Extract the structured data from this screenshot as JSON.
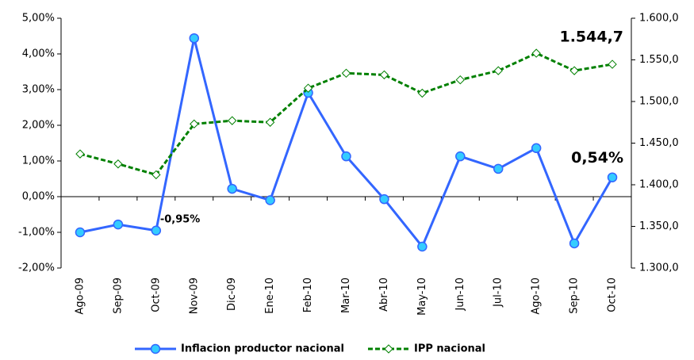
{
  "chart_data": {
    "type": "line",
    "categories": [
      "Ago-09",
      "Sep-09",
      "Oct-09",
      "Nov-09",
      "Dic-09",
      "Ene-10",
      "Feb-10",
      "Mar-10",
      "Abr-10",
      "May-10",
      "Jun-10",
      "Jul-10",
      "Ago-10",
      "Sep-10",
      "Oct-10"
    ],
    "series": [
      {
        "name": "Inflacion productor nacional",
        "color": "#3366ff",
        "marker_color": "#33ccff",
        "axis": "y",
        "values": [
          -1.0,
          -0.78,
          -0.95,
          4.44,
          0.22,
          -0.1,
          2.91,
          1.13,
          -0.07,
          -1.4,
          1.13,
          0.78,
          1.36,
          -1.31,
          0.54
        ],
        "value_labels": [
          null,
          null,
          "-0,95%",
          null,
          null,
          null,
          null,
          null,
          null,
          null,
          null,
          null,
          null,
          null,
          "0,54%"
        ]
      },
      {
        "name": "IPP nacional",
        "color": "#008000",
        "marker_color": "#ffffff",
        "axis": "y2",
        "values": [
          1437,
          1425,
          1412,
          1473,
          1477,
          1475,
          1516,
          1534,
          1532,
          1510,
          1526,
          1537,
          1558,
          1537,
          1544.7
        ],
        "value_labels": [
          null,
          null,
          null,
          null,
          null,
          null,
          null,
          null,
          null,
          null,
          null,
          null,
          null,
          null,
          "1.544,7"
        ]
      }
    ],
    "ylim": [
      -2,
      5
    ],
    "yticks": [
      {
        "value": -2,
        "label": "-2,00%"
      },
      {
        "value": -1,
        "label": "-1,00%"
      },
      {
        "value": 0,
        "label": "0,00%"
      },
      {
        "value": 1,
        "label": "1,00%"
      },
      {
        "value": 2,
        "label": "2,00%"
      },
      {
        "value": 3,
        "label": "3,00%"
      },
      {
        "value": 4,
        "label": "4,00%"
      },
      {
        "value": 5,
        "label": "5,00%"
      }
    ],
    "y2lim": [
      1300,
      1600
    ],
    "y2ticks": [
      {
        "value": 1300,
        "label": "1.300,0"
      },
      {
        "value": 1350,
        "label": "1.350,0"
      },
      {
        "value": 1400,
        "label": "1.400,0"
      },
      {
        "value": 1450,
        "label": "1.450,0"
      },
      {
        "value": 1500,
        "label": "1.500,0"
      },
      {
        "value": 1550,
        "label": "1.550,0"
      },
      {
        "value": 1600,
        "label": "1.600,0"
      }
    ],
    "legend": "bottom"
  }
}
